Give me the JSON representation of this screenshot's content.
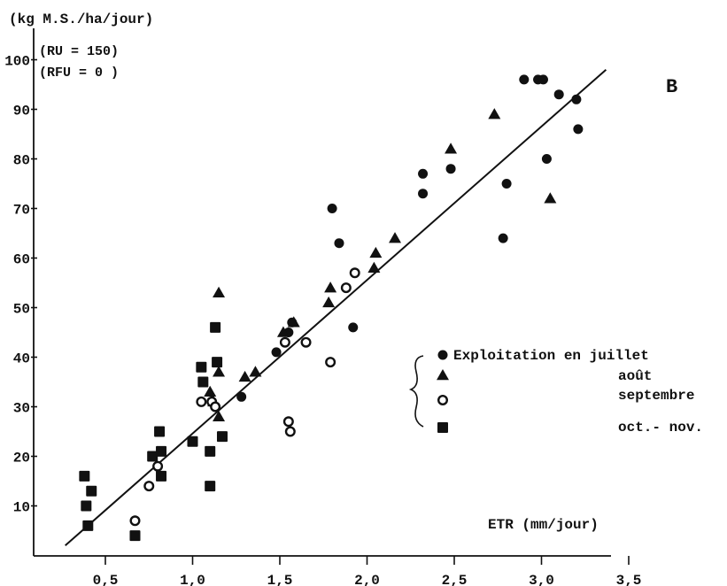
{
  "chart_data": {
    "type": "scatter",
    "ylabel": "(kg M.S./ha/jour)",
    "xlabel": "ETR (mm/jour)",
    "panel_label": "B",
    "annotations": [
      "(RU = 150)",
      "(RFU = 0 )"
    ],
    "xlim": [
      0.1,
      3.75
    ],
    "ylim": [
      0,
      103
    ],
    "x_ticks": [
      0.5,
      1.0,
      1.5,
      2.0,
      2.5,
      3.0,
      3.5
    ],
    "x_tick_labels": [
      "0,5",
      "1,0",
      "1,5",
      "2,0",
      "2,5",
      "3,0",
      "3,5"
    ],
    "y_ticks": [
      10,
      20,
      30,
      40,
      50,
      60,
      70,
      80,
      90,
      100
    ],
    "y_tick_labels": [
      "10",
      "20",
      "30",
      "40",
      "50",
      "60",
      "70",
      "80",
      "90",
      "100"
    ],
    "grid": false,
    "legend": {
      "placement": "right",
      "intro": "Exploitation en",
      "entries": [
        {
          "label": "juillet",
          "marker": "filled-circle"
        },
        {
          "label": "août",
          "marker": "filled-triangle"
        },
        {
          "label": "septembre",
          "marker": "open-circle"
        },
        {
          "label": "oct.- nov.",
          "marker": "filled-square"
        }
      ]
    },
    "regression_line": {
      "x": [
        0.27,
        3.37
      ],
      "y": [
        2,
        98
      ]
    },
    "series": [
      {
        "name": "juillet",
        "marker": "filled-circle",
        "points": [
          [
            1.28,
            32
          ],
          [
            1.48,
            41
          ],
          [
            1.55,
            45
          ],
          [
            1.57,
            47
          ],
          [
            1.8,
            70
          ],
          [
            1.84,
            63
          ],
          [
            1.92,
            46
          ],
          [
            2.32,
            77
          ],
          [
            2.32,
            73
          ],
          [
            2.48,
            78
          ],
          [
            2.78,
            64
          ],
          [
            2.8,
            75
          ],
          [
            2.9,
            96
          ],
          [
            2.98,
            96
          ],
          [
            3.01,
            96
          ],
          [
            3.03,
            80
          ],
          [
            3.1,
            93
          ],
          [
            3.2,
            92
          ],
          [
            3.21,
            86
          ]
        ]
      },
      {
        "name": "août",
        "marker": "filled-triangle",
        "points": [
          [
            1.1,
            33
          ],
          [
            1.12,
            31
          ],
          [
            1.15,
            53
          ],
          [
            1.15,
            37
          ],
          [
            1.15,
            28
          ],
          [
            1.3,
            36
          ],
          [
            1.36,
            37
          ],
          [
            1.52,
            45
          ],
          [
            1.58,
            47
          ],
          [
            1.78,
            51
          ],
          [
            1.79,
            54
          ],
          [
            2.04,
            58
          ],
          [
            2.05,
            61
          ],
          [
            2.16,
            64
          ],
          [
            2.48,
            82
          ],
          [
            2.73,
            89
          ],
          [
            3.05,
            72
          ]
        ]
      },
      {
        "name": "septembre",
        "marker": "open-circle",
        "points": [
          [
            0.67,
            7
          ],
          [
            0.75,
            14
          ],
          [
            0.8,
            18
          ],
          [
            1.05,
            31
          ],
          [
            1.11,
            31
          ],
          [
            1.13,
            30
          ],
          [
            1.53,
            43
          ],
          [
            1.55,
            27
          ],
          [
            1.56,
            25
          ],
          [
            1.65,
            43
          ],
          [
            1.79,
            39
          ],
          [
            1.88,
            54
          ],
          [
            1.93,
            57
          ]
        ]
      },
      {
        "name": "oct.- nov.",
        "marker": "filled-square",
        "points": [
          [
            0.38,
            16
          ],
          [
            0.39,
            10
          ],
          [
            0.4,
            6
          ],
          [
            0.42,
            13
          ],
          [
            0.67,
            4
          ],
          [
            0.77,
            20
          ],
          [
            0.81,
            25
          ],
          [
            0.82,
            21
          ],
          [
            0.82,
            16
          ],
          [
            1.0,
            23
          ],
          [
            1.05,
            38
          ],
          [
            1.06,
            35
          ],
          [
            1.1,
            21
          ],
          [
            1.1,
            14
          ],
          [
            1.13,
            46
          ],
          [
            1.14,
            39
          ],
          [
            1.17,
            24
          ]
        ]
      }
    ]
  }
}
